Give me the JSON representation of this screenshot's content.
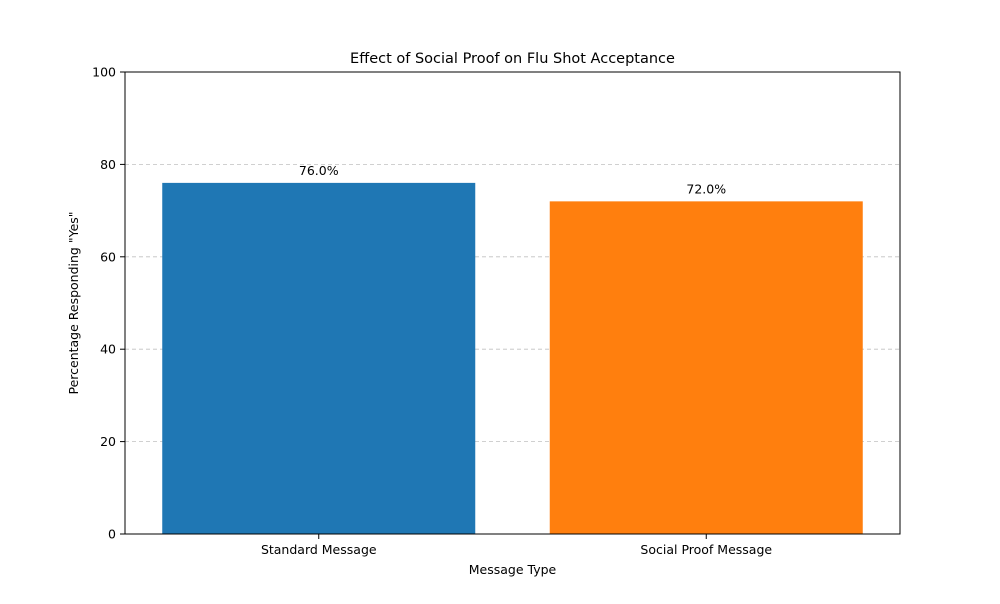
{
  "chart_data": {
    "type": "bar",
    "title": "Effect of Social Proof on Flu Shot Acceptance",
    "xlabel": "Message Type",
    "ylabel": "Percentage Responding \"Yes\"",
    "categories": [
      "Standard Message",
      "Social Proof Message"
    ],
    "values": [
      76.0,
      72.0
    ],
    "value_labels": [
      "76.0%",
      "72.0%"
    ],
    "colors": [
      "#1f77b4",
      "#ff7f0e"
    ],
    "ylim": [
      0,
      100
    ],
    "yticks": [
      0,
      20,
      40,
      60,
      80,
      100
    ],
    "grid": {
      "axis": "y",
      "style": "dashed",
      "color": "#c0c0c0"
    },
    "legend": "none"
  }
}
